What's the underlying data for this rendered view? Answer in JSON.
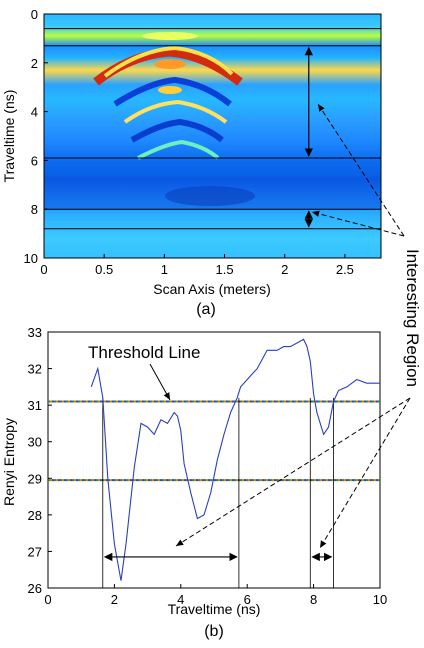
{
  "chart_data": [
    {
      "type": "heatmap",
      "caption": "(a)",
      "xlabel": "Scan Axis (meters)",
      "ylabel": "Traveltime (ns)",
      "xlim": [
        0,
        2.8
      ],
      "ylim": [
        10,
        0
      ],
      "xticks": [
        0,
        0.5,
        1,
        1.5,
        2,
        2.5
      ],
      "yticks": [
        0,
        2,
        4,
        6,
        8,
        10
      ],
      "horizontal_lines": [
        0.6,
        1.3,
        5.9,
        8.0,
        8.8
      ],
      "interval_arrows": [
        {
          "x": 2.2,
          "from": 1.3,
          "to": 5.9
        },
        {
          "x": 2.2,
          "from": 8.0,
          "to": 8.8
        }
      ]
    },
    {
      "type": "line",
      "caption": "(b)",
      "xlabel": "Traveltime (ns)",
      "ylabel": "Renyi Entropy",
      "xlim": [
        0,
        10
      ],
      "ylim": [
        26,
        33
      ],
      "xticks": [
        0,
        2,
        4,
        6,
        8,
        10
      ],
      "yticks": [
        26,
        27,
        28,
        29,
        30,
        31,
        32,
        33
      ],
      "grid": false,
      "series": [
        {
          "x": [
            1.3,
            1.5,
            1.65,
            1.8,
            2.0,
            2.2,
            2.35,
            2.6,
            2.8,
            3.0,
            3.2,
            3.4,
            3.6,
            3.8,
            3.9,
            4.0,
            4.1,
            4.3,
            4.5,
            4.7,
            4.9,
            5.1,
            5.3,
            5.5,
            5.7,
            5.8,
            6.0,
            6.3,
            6.6,
            6.9,
            7.1,
            7.3,
            7.5,
            7.7,
            7.8,
            7.9,
            8.0,
            8.1,
            8.3,
            8.45,
            8.6,
            8.75,
            9.0,
            9.3,
            9.6,
            10.0
          ],
          "y": [
            31.5,
            32.0,
            31.2,
            29.0,
            27.2,
            26.2,
            27.2,
            29.3,
            30.5,
            30.4,
            30.2,
            30.6,
            30.5,
            30.8,
            30.7,
            30.3,
            29.4,
            28.6,
            27.9,
            28.0,
            28.6,
            29.5,
            30.2,
            30.8,
            31.2,
            31.5,
            31.7,
            32.0,
            32.5,
            32.5,
            32.6,
            32.6,
            32.7,
            32.8,
            32.6,
            32.2,
            31.3,
            30.8,
            30.2,
            30.4,
            31.1,
            31.4,
            31.5,
            31.7,
            31.6,
            31.6
          ]
        }
      ],
      "threshold_lines": [
        31.1,
        28.95
      ],
      "vertical_lines": [
        1.65,
        5.75,
        7.9,
        8.6
      ],
      "interval_arrows": [
        {
          "y": 26.85,
          "from": 1.65,
          "to": 5.75
        },
        {
          "y": 26.85,
          "from": 7.9,
          "to": 8.6
        }
      ]
    }
  ],
  "annotations": {
    "threshold_label": "Threshold Line",
    "region_label": "Interesting Region"
  },
  "colors": {
    "line": "#2b3fbf",
    "threshold_dot_a": "#2b8a3e",
    "threshold_dot_b": "#e07b00",
    "threshold_dot_c": "#1f4fd0"
  }
}
